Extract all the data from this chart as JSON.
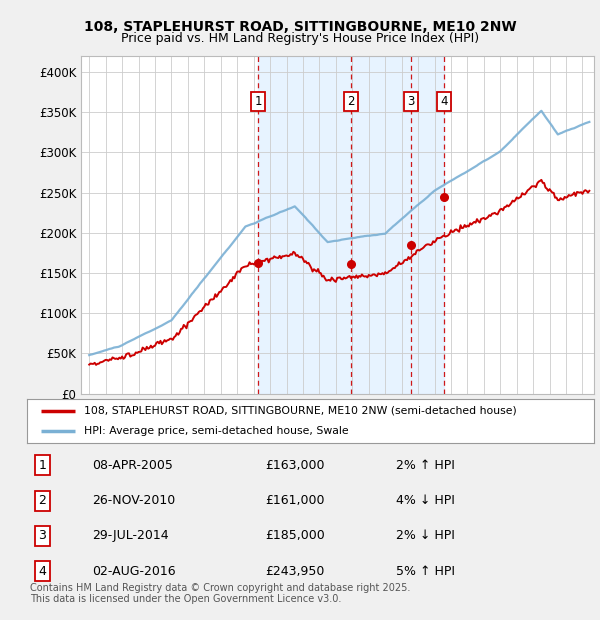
{
  "title1": "108, STAPLEHURST ROAD, SITTINGBOURNE, ME10 2NW",
  "title2": "Price paid vs. HM Land Registry's House Price Index (HPI)",
  "legend_line1": "108, STAPLEHURST ROAD, SITTINGBOURNE, ME10 2NW (semi-detached house)",
  "legend_line2": "HPI: Average price, semi-detached house, Swale",
  "transactions": [
    {
      "num": 1,
      "date": "08-APR-2005",
      "price": 163000,
      "pct": "2%",
      "dir": "↑",
      "year": 2005.27
    },
    {
      "num": 2,
      "date": "26-NOV-2010",
      "price": 161000,
      "pct": "4%",
      "dir": "↓",
      "year": 2010.9
    },
    {
      "num": 3,
      "date": "29-JUL-2014",
      "price": 185000,
      "pct": "2%",
      "dir": "↓",
      "year": 2014.58
    },
    {
      "num": 4,
      "date": "02-AUG-2016",
      "price": 243950,
      "pct": "5%",
      "dir": "↑",
      "year": 2016.59
    }
  ],
  "footer": "Contains HM Land Registry data © Crown copyright and database right 2025.\nThis data is licensed under the Open Government Licence v3.0.",
  "bg_color": "#f0f0f0",
  "plot_bg": "#ffffff",
  "hpi_color": "#7ab0d4",
  "price_color": "#cc0000",
  "transaction_color": "#cc0000",
  "grid_color": "#cccccc",
  "shade_color": "#ddeeff",
  "ylim": [
    0,
    420000
  ],
  "yticks": [
    0,
    50000,
    100000,
    150000,
    200000,
    250000,
    300000,
    350000,
    400000
  ],
  "xlim_start": 1994.5,
  "xlim_end": 2025.7
}
